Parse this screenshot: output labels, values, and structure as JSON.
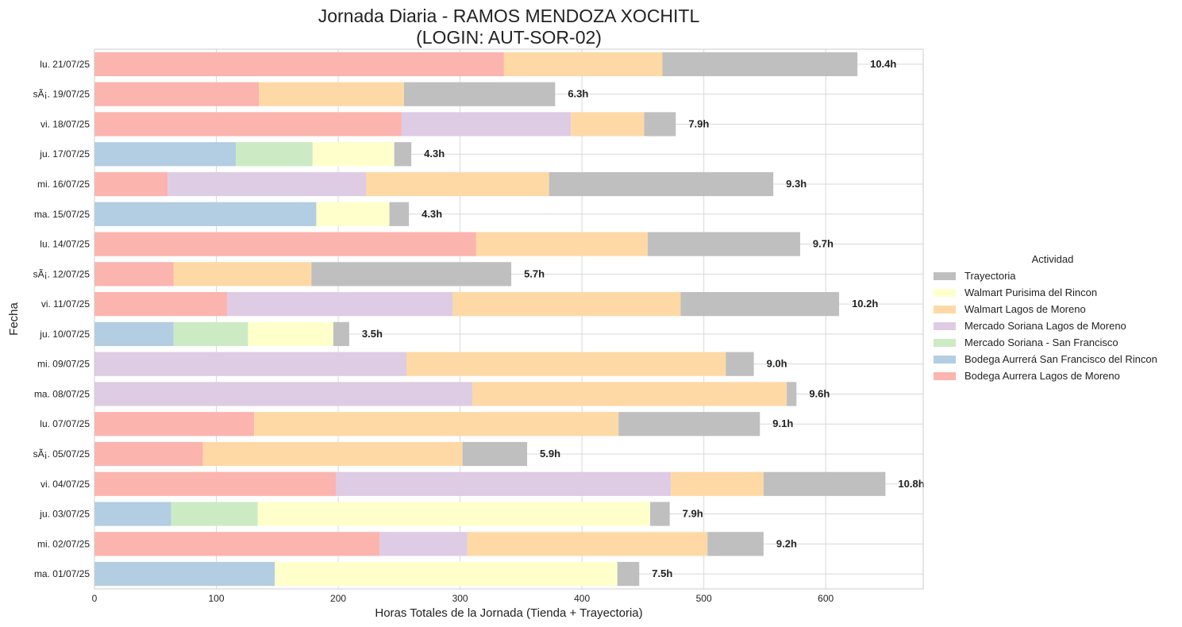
{
  "chart_data": {
    "type": "bar",
    "orientation": "horizontal",
    "stacked": true,
    "title": [
      "Jornada Diaria - RAMOS MENDOZA XOCHITL",
      "(LOGIN: AUT-SOR-02)"
    ],
    "xlabel": "Horas Totales de la Jornada (Tienda + Trayectoria)",
    "ylabel": "Fecha",
    "xlim": [
      0,
      680
    ],
    "xticks": [
      0,
      100,
      200,
      300,
      400,
      500,
      600
    ],
    "grid": true,
    "legend_title": "Actividad",
    "legend_position": "right",
    "categories": [
      "lu. 21/07/25",
      "sÃ¡. 19/07/25",
      "vi. 18/07/25",
      "ju. 17/07/25",
      "mi. 16/07/25",
      "ma. 15/07/25",
      "lu. 14/07/25",
      "sÃ¡. 12/07/25",
      "vi. 11/07/25",
      "ju. 10/07/25",
      "mi. 09/07/25",
      "ma. 08/07/25",
      "lu. 07/07/25",
      "sÃ¡. 05/07/25",
      "vi. 04/07/25",
      "ju. 03/07/25",
      "mi. 02/07/25",
      "ma. 01/07/25"
    ],
    "series": [
      {
        "name": "Bodega Aurrera Lagos de Moreno",
        "color": "#fbb4ae",
        "values": [
          336,
          135,
          252,
          0,
          60,
          0,
          313,
          65,
          109,
          0,
          0,
          0,
          131,
          89,
          198,
          0,
          234,
          0
        ]
      },
      {
        "name": "Bodega Aurrerá San Francisco del Rincon",
        "color": "#b3cde3",
        "values": [
          0,
          0,
          0,
          116,
          0,
          182,
          0,
          0,
          0,
          65,
          0,
          0,
          0,
          0,
          0,
          63,
          0,
          148
        ]
      },
      {
        "name": "Mercado Soriana - San Francisco",
        "color": "#ccebc5",
        "values": [
          0,
          0,
          0,
          63,
          0,
          0,
          0,
          0,
          0,
          61,
          0,
          0,
          0,
          0,
          0,
          71,
          0,
          0
        ]
      },
      {
        "name": "Mercado Soriana Lagos de Moreno",
        "color": "#decbe4",
        "values": [
          0,
          0,
          139,
          0,
          163,
          0,
          0,
          0,
          185,
          0,
          256,
          310,
          0,
          0,
          275,
          0,
          72,
          0
        ]
      },
      {
        "name": "Walmart Lagos de Moreno",
        "color": "#fed9a6",
        "values": [
          130,
          119,
          60,
          0,
          150,
          0,
          141,
          113,
          187,
          0,
          262,
          258,
          299,
          213,
          76,
          0,
          197,
          0
        ]
      },
      {
        "name": "Walmart Purisima del Rincon",
        "color": "#ffffcc",
        "values": [
          0,
          0,
          0,
          67,
          0,
          60,
          0,
          0,
          0,
          70,
          0,
          0,
          0,
          0,
          0,
          322,
          0,
          281
        ]
      },
      {
        "name": "Trayectoria",
        "color": "#bfbfbf",
        "values": [
          160,
          124,
          26,
          14,
          184,
          16,
          125,
          164,
          130,
          13,
          23,
          8,
          116,
          53,
          100,
          16,
          46,
          18
        ]
      }
    ],
    "total_labels": [
      "10.4h",
      "6.3h",
      "7.9h",
      "4.3h",
      "9.3h",
      "4.3h",
      "9.7h",
      "5.7h",
      "10.2h",
      "3.5h",
      "9.0h",
      "9.6h",
      "9.1h",
      "5.9h",
      "10.8h",
      "7.9h",
      "9.2h",
      "7.5h"
    ],
    "legend_order": [
      "Trayectoria",
      "Walmart Purisima del Rincon",
      "Walmart Lagos de Moreno",
      "Mercado Soriana Lagos de Moreno",
      "Mercado Soriana - San Francisco",
      "Bodega Aurrerá San Francisco del Rincon",
      "Bodega Aurrera Lagos de Moreno"
    ]
  }
}
